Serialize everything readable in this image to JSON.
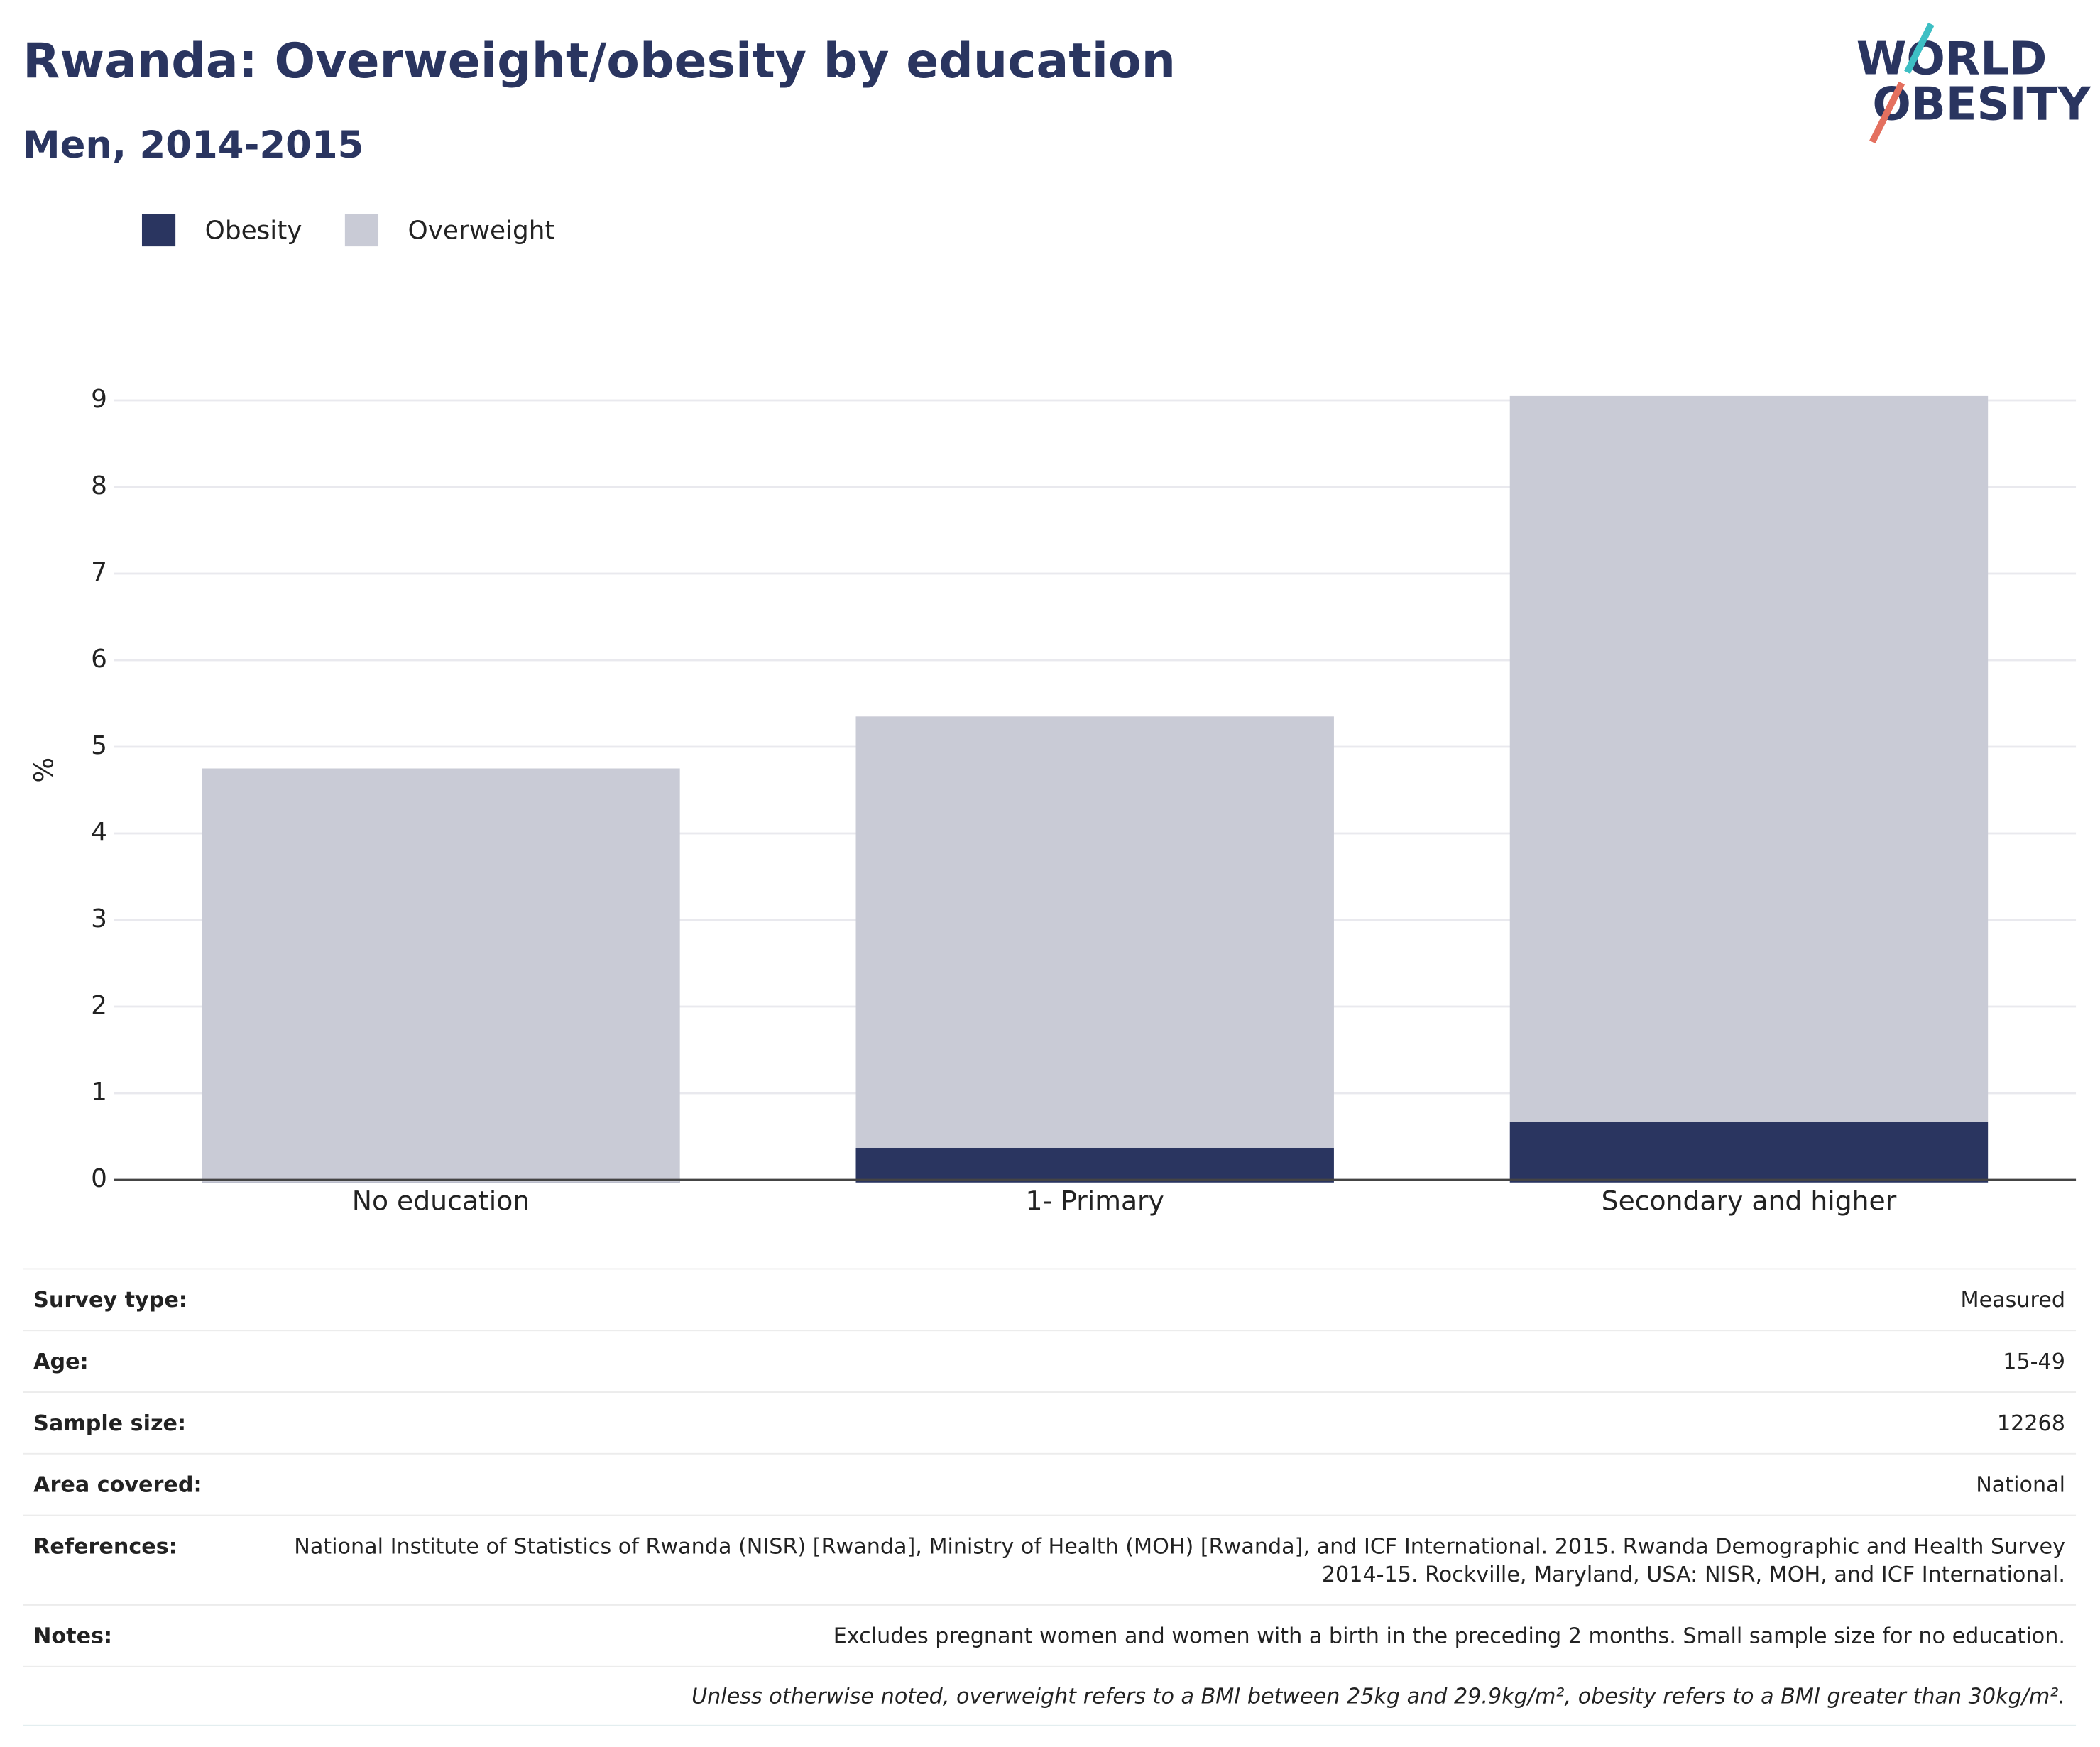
{
  "chart_data": {
    "type": "stacked-bar",
    "title": "Rwanda: Overweight/obesity by education",
    "subtitle": "Men, 2014-2015",
    "y_label": "%",
    "categories": [
      "No education",
      "1- Primary",
      "Secondary and higher"
    ],
    "series": [
      {
        "name": "Obesity",
        "color": "#2a3560",
        "values": [
          0,
          0.37,
          0.67
        ]
      },
      {
        "name": "Overweight",
        "color": "#c9cbd6",
        "values": [
          4.75,
          4.98,
          8.38
        ]
      }
    ],
    "ylim": [
      0,
      9.1
    ],
    "yticks": [
      0,
      1,
      2,
      3,
      4,
      5,
      6,
      7,
      8,
      9
    ],
    "grid": true,
    "legend": "top-left"
  },
  "logo": {
    "line1": "WORLD",
    "line2": "OBESITY"
  },
  "details": {
    "rows": [
      [
        "Survey type:",
        "Measured"
      ],
      [
        "Age:",
        "15-49"
      ],
      [
        "Sample size:",
        "12268"
      ],
      [
        "Area covered:",
        "National"
      ],
      [
        "References:",
        "National Institute of Statistics of Rwanda (NISR) [Rwanda], Ministry of Health (MOH) [Rwanda], and ICF International. 2015. Rwanda Demographic and Health Survey 2014-15. Rockville, Maryland, USA: NISR, MOH, and ICF International."
      ],
      [
        "Notes:",
        "Excludes pregnant women and women with a birth in the preceding 2 months. Small sample size for no education."
      ]
    ],
    "footnote": "Unless otherwise noted, overweight refers to a BMI between 25kg and 29.9kg/m², obesity refers to a BMI greater than 30kg/m²."
  }
}
